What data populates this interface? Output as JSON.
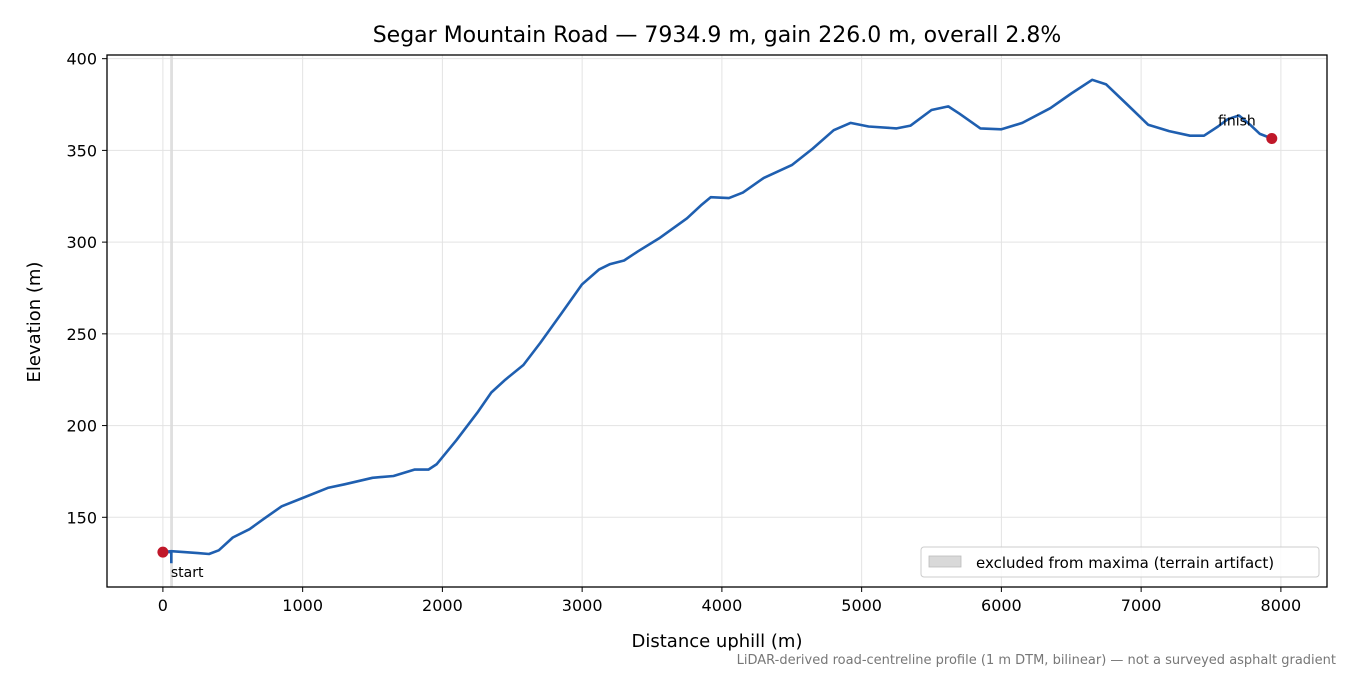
{
  "chart_data": {
    "type": "line",
    "title": "Segar Mountain Road — 7934.9 m, gain 226.0 m, overall 2.8%",
    "xlabel": "Distance uphill (m)",
    "ylabel": "Elevation (m)",
    "xlim": [
      -400,
      8330
    ],
    "ylim": [
      112,
      402
    ],
    "xticks": [
      0,
      1000,
      2000,
      3000,
      4000,
      5000,
      6000,
      7000,
      8000
    ],
    "yticks": [
      150,
      200,
      250,
      300,
      350,
      400
    ],
    "grid": true,
    "line_color": "#1f5fb0",
    "marker_color": "#c0182a",
    "band_color": "#d9d9d9",
    "series": [
      {
        "x": [
          0,
          60,
          150,
          250,
          330,
          400,
          500,
          620,
          720,
          850,
          1000,
          1180,
          1300,
          1500,
          1650,
          1800,
          1900,
          1960,
          2100,
          2250,
          2350,
          2450,
          2580,
          2700,
          2850,
          3000,
          3120,
          3200,
          3300,
          3400,
          3550,
          3750,
          3850,
          3920,
          4050,
          4150,
          4300,
          4500,
          4650,
          4800,
          4920,
          5050,
          5250,
          5350,
          5500,
          5620,
          5700,
          5850,
          6000,
          6150,
          6350,
          6500,
          6650,
          6750,
          6900,
          7050,
          7200,
          7350,
          7450,
          7550,
          7620,
          7700,
          7780,
          7850,
          7934.9
        ],
        "y": [
          131,
          131.5,
          131,
          130.5,
          130,
          132,
          139,
          143.5,
          149,
          156,
          160.5,
          166,
          168,
          171.5,
          172.5,
          176,
          176,
          179,
          192,
          207,
          218,
          225,
          233,
          245,
          261,
          277,
          285,
          288,
          290,
          295,
          302,
          313,
          320,
          324.5,
          324,
          327,
          335,
          342,
          351,
          361,
          365,
          363,
          362,
          363.5,
          372,
          374,
          370,
          362,
          361.5,
          365,
          373,
          381,
          388.5,
          386,
          375,
          364,
          360.5,
          358,
          358,
          363,
          367,
          369,
          364,
          359,
          356.5
        ]
      }
    ],
    "artifact": {
      "x": [
        0,
        60,
        60
      ],
      "y": [
        131,
        131,
        125
      ]
    },
    "excluded_band": [
      52,
      72
    ],
    "points": [
      {
        "label": "start",
        "x": 0,
        "y": 131
      },
      {
        "label": "finish",
        "x": 7934.9,
        "y": 356.5
      }
    ],
    "legend": {
      "position": "lower-right",
      "entries": [
        "excluded from maxima (terrain artifact)"
      ]
    },
    "footnote": "LiDAR-derived road-centreline profile (1 m DTM, bilinear) — not a surveyed asphalt gradient"
  }
}
